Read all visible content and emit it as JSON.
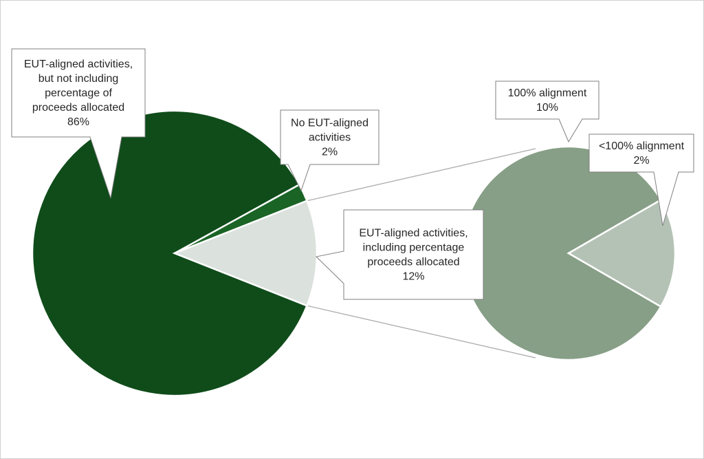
{
  "chart_data": {
    "type": "pie",
    "subtype": "pie-of-pie",
    "primary_pie": {
      "slices": [
        {
          "label": "EUT-aligned activities, but not including percentage of proceeds allocated",
          "value": 86,
          "value_label": "86%",
          "color": "#0f4c1a"
        },
        {
          "label": "No EUT-aligned activities",
          "value": 2,
          "value_label": "2%",
          "color": "#1a6426"
        },
        {
          "label": "EUT-aligned activities, including percentage proceeds allocated",
          "value": 12,
          "value_label": "12%",
          "color": "#dbe1dd"
        }
      ]
    },
    "secondary_pie": {
      "breaks_out": "EUT-aligned activities, including percentage proceeds allocated",
      "slices": [
        {
          "label": "100% alignment",
          "value": 10,
          "value_label": "10%",
          "color": "#879e87"
        },
        {
          "label": "<100% alignment",
          "value": 2,
          "value_label": "2%",
          "color": "#b4c2b5"
        }
      ]
    },
    "callouts": [
      {
        "lines": [
          "EUT-aligned activities,",
          "but not including",
          "percentage of",
          "proceeds allocated",
          "86%"
        ]
      },
      {
        "lines": [
          "No EUT-aligned",
          "activities",
          "2%"
        ]
      },
      {
        "lines": [
          "EUT-aligned activities,",
          "including percentage",
          "proceeds allocated",
          "12%"
        ]
      },
      {
        "lines": [
          "100% alignment",
          "10%"
        ]
      },
      {
        "lines": [
          "<100% alignment",
          "2%"
        ]
      }
    ],
    "legend": "none",
    "connector_color": "#a6a6a6",
    "callout_border_color": "#7f7f7f"
  }
}
